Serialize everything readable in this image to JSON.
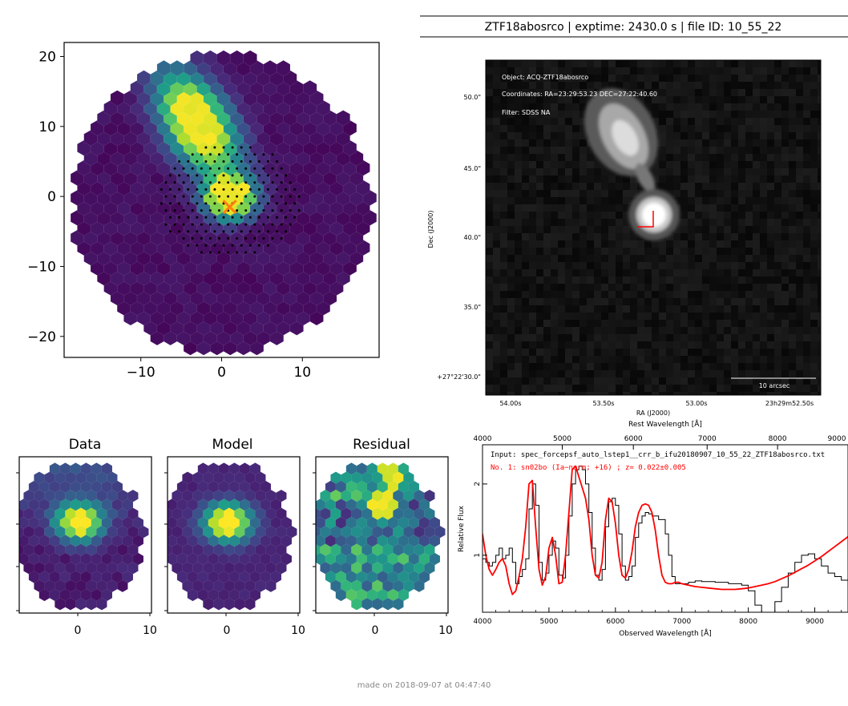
{
  "header": {
    "title": "ZTF18abosrco | exptime: 2430.0 s | file ID: 10_55_22"
  },
  "footer": {
    "made_on": "made on 2018-09-07 at 04:47:40"
  },
  "colors": {
    "viridis": [
      "#440154",
      "#482878",
      "#3e4a89",
      "#31688e",
      "#26828e",
      "#1f9e89",
      "#35b779",
      "#6ece58",
      "#b5de2b",
      "#fde725"
    ],
    "marker": "#ff7f0e",
    "model_line": "#ff0000",
    "spectrum_line": "#000000"
  },
  "chart_data": [
    {
      "id": "ifu_cube",
      "type": "heatmap",
      "xticks": [
        "−10",
        "0",
        "10"
      ],
      "yticks": [
        "20",
        "10",
        "0",
        "−10",
        "−20"
      ],
      "xlim": [
        -19.5,
        19.5
      ],
      "ylim": [
        -23,
        22
      ],
      "blob_main": {
        "x": -3.0,
        "y": 10.5,
        "sigma_x": 2.6,
        "sigma_y": 5.2,
        "angle_deg": -25,
        "amp": 1.0
      },
      "blob_target": {
        "x": 1.0,
        "y": 0.0,
        "sigma": 2.0,
        "amp": 1.0
      },
      "target_marker": {
        "x": 1.0,
        "y": -1.5,
        "symbol": "x"
      },
      "aperture_radius": 8.5
    },
    {
      "id": "acquisition_image",
      "type": "heatmap",
      "overlay": [
        "Object: ACQ-ZTF18abosrco",
        "Coordinates: RA=23:29:53.23 DEC=27:22:40.60",
        "Filter: SDSS NA"
      ],
      "yticks": [
        "50.0\"",
        "45.0\"",
        "40.0\"",
        "35.0\"",
        "+27°22'30.0\""
      ],
      "xticks": [
        "54.00s",
        "53.50s",
        "53.00s",
        "23h29m52.50s"
      ],
      "xlabel": "RA (J2000)",
      "ylabel": "Dec (J2000)",
      "scalebar": "10 arcsec"
    },
    {
      "id": "data_panel",
      "title": "Data",
      "type": "heatmap",
      "xticks": [
        "0",
        "10"
      ]
    },
    {
      "id": "model_panel",
      "title": "Model",
      "type": "heatmap",
      "xticks": [
        "0",
        "10"
      ]
    },
    {
      "id": "residual_panel",
      "title": "Residual",
      "type": "heatmap",
      "xticks": [
        "0",
        "10"
      ]
    },
    {
      "id": "spectrum",
      "type": "line",
      "xlabel": "Observed Wavelength [Å]",
      "top_xlabel": "Rest Wavelength [Å]",
      "ylabel": "Relative Flux",
      "xlim": [
        4000,
        9500
      ],
      "ylim": [
        0.2,
        2.55
      ],
      "xticks": [
        "4000",
        "5000",
        "6000",
        "7000",
        "8000",
        "9000"
      ],
      "top_xticks": [
        "4000",
        "5000",
        "6000",
        "7000",
        "8000",
        "9000"
      ],
      "yticks": [
        "1",
        "2"
      ],
      "input_label": "Input:  spec_forcepsf_auto_lstep1__crr_b_ifu20180907_10_55_22_ZTF18abosrco.txt",
      "match_label": "No.          1: sn02bo (Ia−norm; +16) ; z= 0.022±0.005",
      "series": [
        {
          "name": "spectrum",
          "x": [
            4000,
            4050,
            4100,
            4150,
            4200,
            4250,
            4300,
            4350,
            4400,
            4450,
            4500,
            4550,
            4600,
            4650,
            4700,
            4750,
            4800,
            4850,
            4900,
            4950,
            5000,
            5050,
            5100,
            5150,
            5200,
            5250,
            5300,
            5350,
            5400,
            5450,
            5500,
            5550,
            5600,
            5650,
            5700,
            5750,
            5800,
            5850,
            5900,
            5950,
            6000,
            6050,
            6100,
            6150,
            6200,
            6250,
            6300,
            6350,
            6400,
            6450,
            6500,
            6550,
            6600,
            6650,
            6700,
            6750,
            6800,
            6850,
            6900,
            6950,
            7000,
            7100,
            7200,
            7300,
            7400,
            7500,
            7600,
            7700,
            7800,
            7900,
            8000,
            8100,
            8200,
            8300,
            8400,
            8500,
            8600,
            8700,
            8800,
            8900,
            9000,
            9100,
            9200,
            9300,
            9400,
            9500
          ],
          "y": [
            0.95,
            0.9,
            0.85,
            0.9,
            1.0,
            1.1,
            0.95,
            1.0,
            1.1,
            0.9,
            0.6,
            0.7,
            0.8,
            0.95,
            1.65,
            2.0,
            1.7,
            0.9,
            0.65,
            0.75,
            1.0,
            1.2,
            1.1,
            0.72,
            0.68,
            1.0,
            1.55,
            2.0,
            2.2,
            2.25,
            2.2,
            2.0,
            1.6,
            1.1,
            0.72,
            0.65,
            0.8,
            1.4,
            1.75,
            1.8,
            1.7,
            1.3,
            0.85,
            0.65,
            0.7,
            0.85,
            1.25,
            1.45,
            1.55,
            1.6,
            1.58,
            1.55,
            1.55,
            1.5,
            1.5,
            1.3,
            1.0,
            0.7,
            0.6,
            0.6,
            0.6,
            0.62,
            0.64,
            0.63,
            0.63,
            0.62,
            0.62,
            0.6,
            0.6,
            0.58,
            0.5,
            0.3,
            0.18,
            0.2,
            0.35,
            0.55,
            0.75,
            0.9,
            1.0,
            1.02,
            0.95,
            0.85,
            0.75,
            0.7,
            0.65,
            0.62
          ]
        },
        {
          "name": "sn02bo (Ia−norm; +16)",
          "x": [
            4000,
            4050,
            4100,
            4150,
            4200,
            4250,
            4300,
            4350,
            4400,
            4450,
            4500,
            4550,
            4600,
            4650,
            4700,
            4750,
            4800,
            4850,
            4900,
            4950,
            5000,
            5050,
            5100,
            5150,
            5200,
            5250,
            5300,
            5350,
            5400,
            5450,
            5500,
            5550,
            5600,
            5650,
            5700,
            5750,
            5800,
            5850,
            5900,
            5950,
            6000,
            6050,
            6100,
            6150,
            6200,
            6250,
            6300,
            6350,
            6400,
            6450,
            6500,
            6550,
            6600,
            6650,
            6700,
            6750,
            6800,
            6850,
            6900,
            6950,
            7000,
            7100,
            7200,
            7300,
            7400,
            7500,
            7600,
            7700,
            7800,
            7900,
            8000,
            8100,
            8200,
            8300,
            8400,
            8500,
            8600,
            8700,
            8800,
            8900,
            9000,
            9100,
            9200,
            9300,
            9400,
            9500
          ],
          "y": [
            1.3,
            1.0,
            0.8,
            0.72,
            0.8,
            0.9,
            0.95,
            0.85,
            0.6,
            0.45,
            0.5,
            0.7,
            0.95,
            1.4,
            2.0,
            2.05,
            1.4,
            0.8,
            0.58,
            0.7,
            1.1,
            1.25,
            1.0,
            0.6,
            0.62,
            1.0,
            1.6,
            2.2,
            2.25,
            2.1,
            1.95,
            1.8,
            1.5,
            1.0,
            0.72,
            0.68,
            0.9,
            1.5,
            1.8,
            1.75,
            1.45,
            1.0,
            0.72,
            0.68,
            0.8,
            1.05,
            1.4,
            1.6,
            1.7,
            1.72,
            1.7,
            1.6,
            1.35,
            1.0,
            0.72,
            0.62,
            0.6,
            0.6,
            0.62,
            0.62,
            0.6,
            0.58,
            0.56,
            0.55,
            0.54,
            0.53,
            0.52,
            0.52,
            0.52,
            0.53,
            0.54,
            0.56,
            0.58,
            0.6,
            0.63,
            0.67,
            0.71,
            0.76,
            0.81,
            0.86,
            0.92,
            0.98,
            1.05,
            1.12,
            1.19,
            1.26
          ]
        }
      ]
    }
  ]
}
